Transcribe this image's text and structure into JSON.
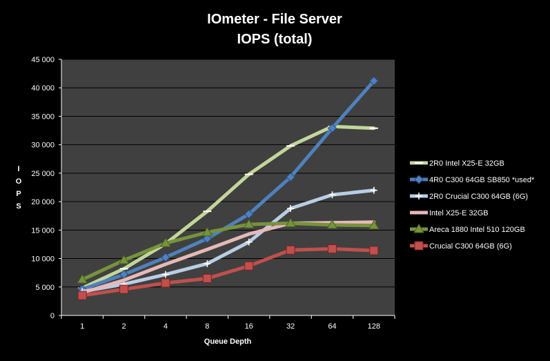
{
  "chart_data": {
    "type": "line",
    "title": "IOmeter - File Server",
    "subtitle": "IOPS (total)",
    "xlabel": "Queue Depth",
    "ylabel": "I O P S",
    "categories": [
      "1",
      "2",
      "4",
      "8",
      "16",
      "32",
      "64",
      "128"
    ],
    "ylim": [
      0,
      45000
    ],
    "yticks": [
      0,
      5000,
      10000,
      15000,
      20000,
      25000,
      30000,
      35000,
      40000,
      45000
    ],
    "ytick_labels": [
      "0",
      "5 000",
      "10 000",
      "15 000",
      "20 000",
      "25 000",
      "30 000",
      "35 000",
      "40 000",
      "45 000"
    ],
    "grid": "horizontal",
    "legend_position": "right",
    "plot_background": "#404040",
    "series": [
      {
        "name": "2R0 Intel X25-E 32GB",
        "color": "#c3d69b",
        "marker": "dash",
        "values": [
          4800,
          8200,
          12600,
          18300,
          24800,
          29800,
          33200,
          32900
        ]
      },
      {
        "name": "4R0 C300 64GB SB850 *used*",
        "color": "#4f81bd",
        "marker": "diamond",
        "values": [
          4600,
          7200,
          10200,
          13500,
          17800,
          24300,
          32900,
          41200
        ]
      },
      {
        "name": "2R0 Crucial C300 64GB (6G)",
        "color": "#b9cde5",
        "marker": "plus",
        "values": [
          4200,
          5500,
          7200,
          9100,
          12900,
          18800,
          21200,
          22000
        ]
      },
      {
        "name": "Intel X25-E 32GB",
        "color": "#e6b9b8",
        "marker": "none",
        "values": [
          4000,
          6200,
          9000,
          11600,
          14300,
          16200,
          16300,
          16400
        ]
      },
      {
        "name": "Areca 1880 Intel 510 120GB",
        "color": "#77933c",
        "marker": "triangle",
        "values": [
          6300,
          9700,
          12700,
          14600,
          16000,
          16200,
          15900,
          15800
        ]
      },
      {
        "name": "Crucial C300 64GB (6G)",
        "color": "#c0504d",
        "marker": "square",
        "values": [
          3500,
          4600,
          5700,
          6500,
          8700,
          11500,
          11700,
          11400
        ]
      }
    ]
  }
}
